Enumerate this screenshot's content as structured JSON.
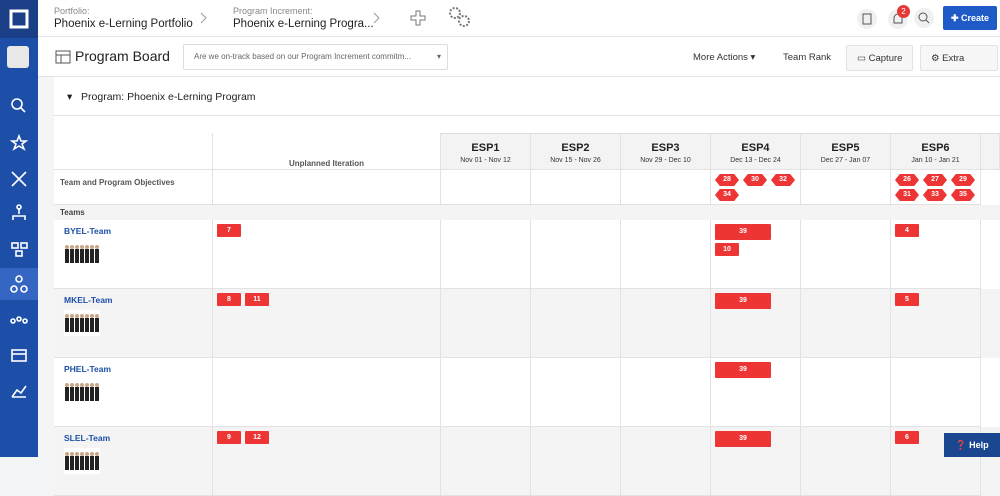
{
  "topbar": {
    "portfolio_label": "Portfolio:",
    "portfolio": "Phoenix e-Lerning Portfolio",
    "pi_label": "Program Increment:",
    "pi": "Phoenix e-Lerning Progra...",
    "notifications": "2",
    "create": "Create"
  },
  "toolbar": {
    "title": "Program Board",
    "dropdown": "Are we on-track based on our Program Increment commitm...",
    "actions": [
      "More Actions",
      "Team Rank",
      "Capture",
      "Extra Configs"
    ]
  },
  "board": {
    "program": "Program: Phoenix e-Lerning Program",
    "unplanned": "Unplanned Iteration",
    "iterations": [
      {
        "name": "ESP1",
        "dates": "Nov 01 - Nov 12"
      },
      {
        "name": "ESP2",
        "dates": "Nov 15 - Nov 26"
      },
      {
        "name": "ESP3",
        "dates": "Nov 29 - Dec 10"
      },
      {
        "name": "ESP4",
        "dates": "Dec 13 - Dec 24"
      },
      {
        "name": "ESP5",
        "dates": "Dec 27 - Jan 07"
      },
      {
        "name": "ESP6",
        "dates": "Jan 10 - Jan 21"
      }
    ],
    "objectives_label": "Team and Program Objectives",
    "objectives": [
      [],
      [],
      [],
      [
        28,
        30,
        32,
        34
      ],
      [],
      [
        26,
        27,
        29,
        31,
        33,
        35
      ]
    ],
    "teams_label": "Teams",
    "teams": [
      {
        "name": "BYEL-Team",
        "unplanned": [
          7
        ],
        "iterations": [
          [],
          [],
          [],
          [
            39,
            10
          ],
          [],
          [
            4
          ]
        ]
      },
      {
        "name": "MKEL-Team",
        "unplanned": [
          8,
          11
        ],
        "iterations": [
          [],
          [],
          [],
          [
            39
          ],
          [],
          [
            5
          ]
        ]
      },
      {
        "name": "PHEL-Team",
        "unplanned": [],
        "iterations": [
          [],
          [],
          [],
          [
            39
          ],
          [],
          []
        ]
      },
      {
        "name": "SLEL-Team",
        "unplanned": [
          9,
          12
        ],
        "iterations": [
          [],
          [],
          [],
          [
            39
          ],
          [],
          [
            6
          ]
        ]
      }
    ]
  },
  "help": "Help"
}
